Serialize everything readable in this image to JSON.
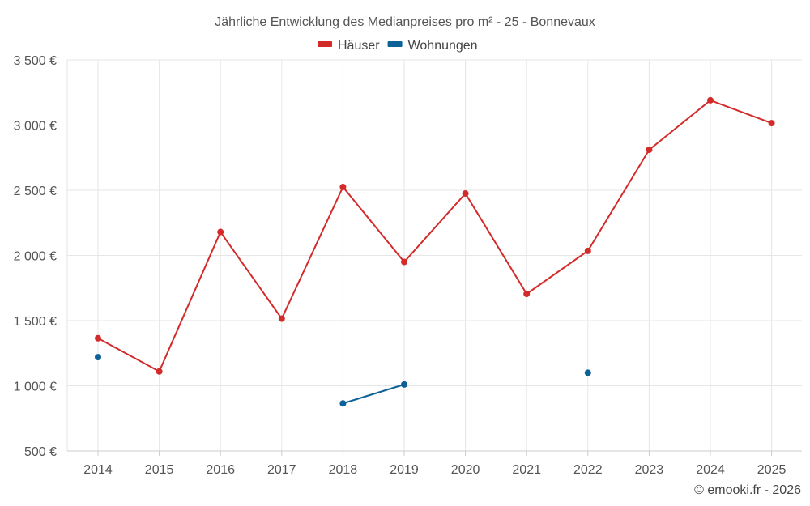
{
  "chart_data": {
    "type": "line",
    "title": "Jährliche Entwicklung des Medianpreises pro m² - 25 - Bonnevaux",
    "categories": [
      "2014",
      "2015",
      "2016",
      "2017",
      "2018",
      "2019",
      "2020",
      "2021",
      "2022",
      "2023",
      "2024",
      "2025"
    ],
    "series": [
      {
        "name": "Häuser",
        "color": "#d32a2a",
        "values": [
          1365,
          1110,
          2180,
          1515,
          2525,
          1950,
          2475,
          1705,
          2035,
          2810,
          3190,
          3015
        ]
      },
      {
        "name": "Wohnungen",
        "color": "#0d6199",
        "values": [
          1220,
          null,
          null,
          null,
          865,
          1010,
          null,
          null,
          1100,
          null,
          null,
          null
        ]
      }
    ],
    "ylim": [
      500,
      3500
    ],
    "yticks": [
      500,
      1000,
      1500,
      2000,
      2500,
      3000,
      3500
    ],
    "ytick_labels": [
      "500 €",
      "1 000 €",
      "1 500 €",
      "2 000 €",
      "2 500 €",
      "3 000 €",
      "3 500 €"
    ],
    "grid": true,
    "legend_position": "top-center",
    "xlabel": "",
    "ylabel": ""
  },
  "credit": "© emooki.fr - 2026"
}
